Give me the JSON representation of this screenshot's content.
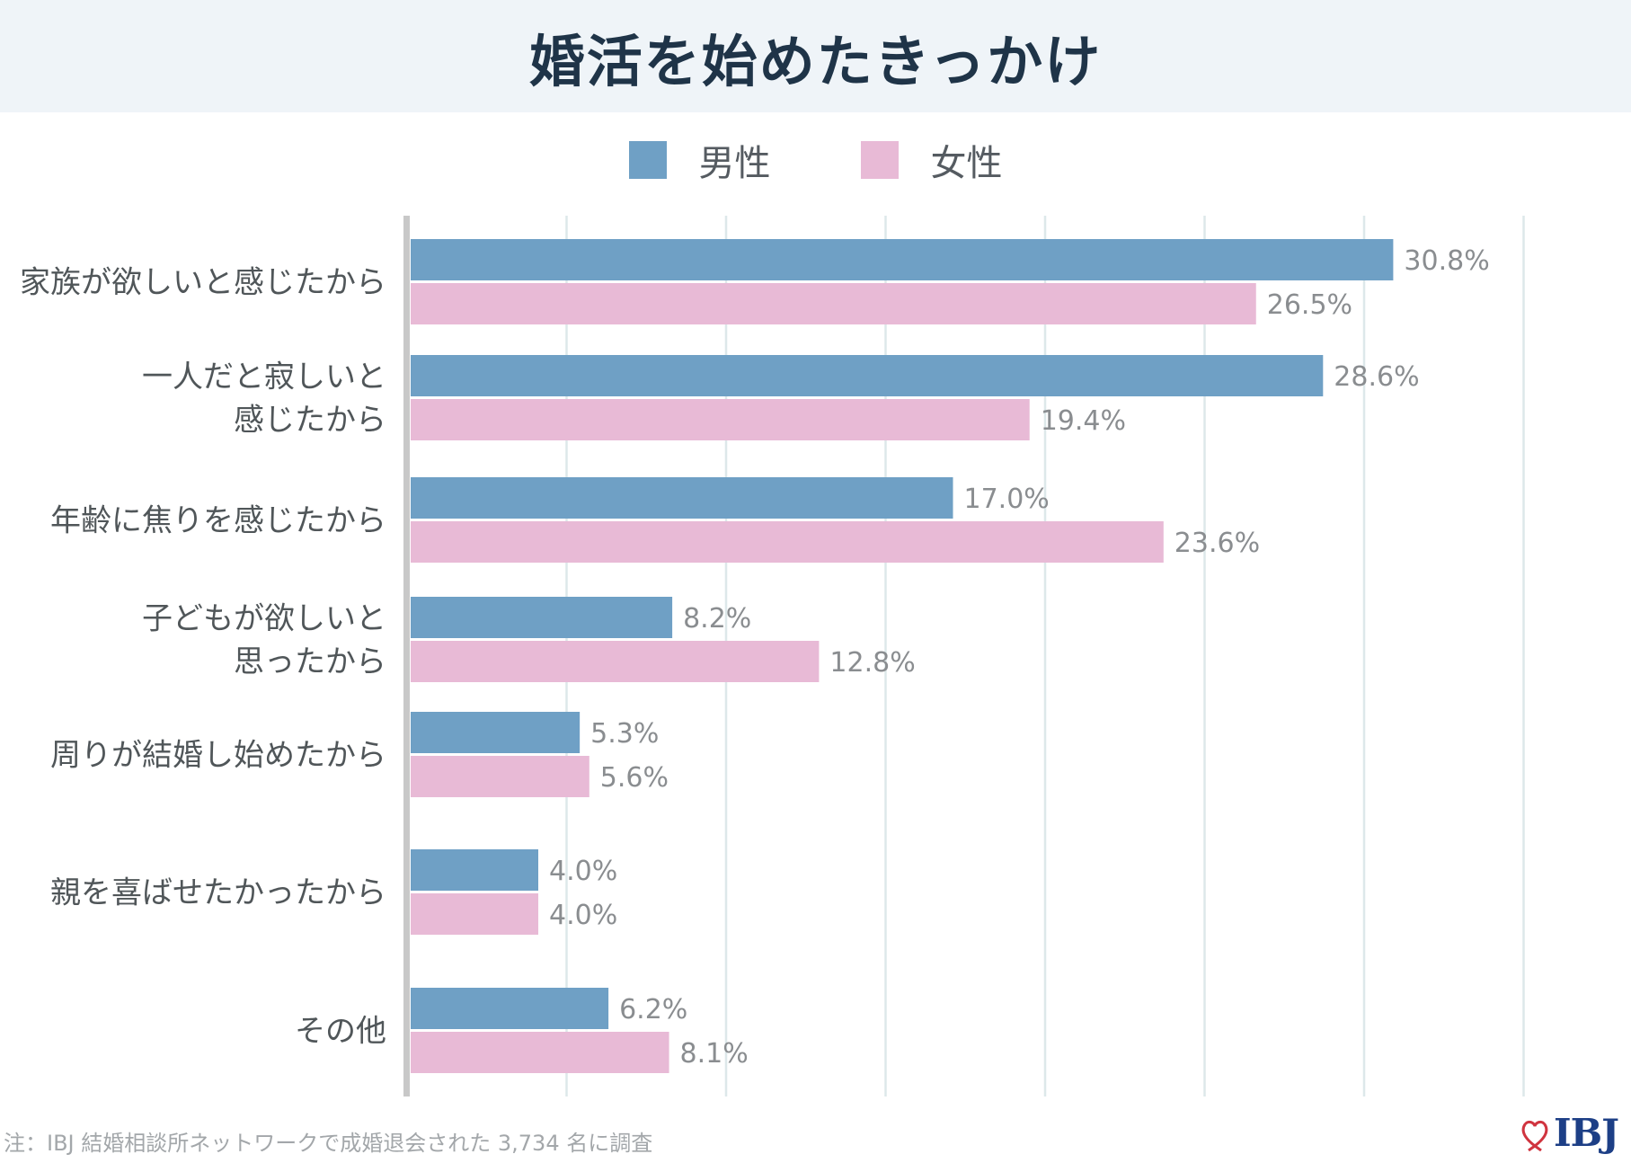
{
  "header": {
    "title": "婚活を始めたきっかけ"
  },
  "legend": [
    {
      "label": "男性",
      "color": "#6fa0c5"
    },
    {
      "label": "女性",
      "color": "#e8bad6"
    }
  ],
  "chart_data": {
    "type": "bar",
    "orientation": "horizontal",
    "title": "婚活を始めたきっかけ",
    "categories": [
      [
        "家族が欲しいと感じたから"
      ],
      [
        "一人だと寂しいと",
        "感じたから"
      ],
      [
        "年齢に焦りを感じたから"
      ],
      [
        "子どもが欲しいと",
        "思ったから"
      ],
      [
        "周りが結婚し始めたから"
      ],
      [
        "親を喜ばせたかったから"
      ],
      [
        "その他"
      ]
    ],
    "series": [
      {
        "name": "男性",
        "color": "#6fa0c5",
        "values": [
          30.8,
          28.6,
          17.0,
          8.2,
          5.3,
          4.0,
          6.2
        ],
        "labels": [
          "30.8%",
          "28.6%",
          "17.0%",
          "8.2%",
          "5.3%",
          "4.0%",
          "6.2%"
        ]
      },
      {
        "name": "女性",
        "color": "#e8bad6",
        "values": [
          26.5,
          19.4,
          23.6,
          12.8,
          5.6,
          4.0,
          8.1
        ],
        "labels": [
          "26.5%",
          "19.4%",
          "23.6%",
          "12.8%",
          "5.6%",
          "4.0%",
          "8.1%"
        ]
      }
    ],
    "xlim": [
      0,
      35
    ],
    "grid": true,
    "legend_position": "top-center"
  },
  "footer": {
    "note": "注：IBJ 結婚相談所ネットワークで成婚退会された 3,734 名に調査",
    "logo_text": "IBJ"
  }
}
